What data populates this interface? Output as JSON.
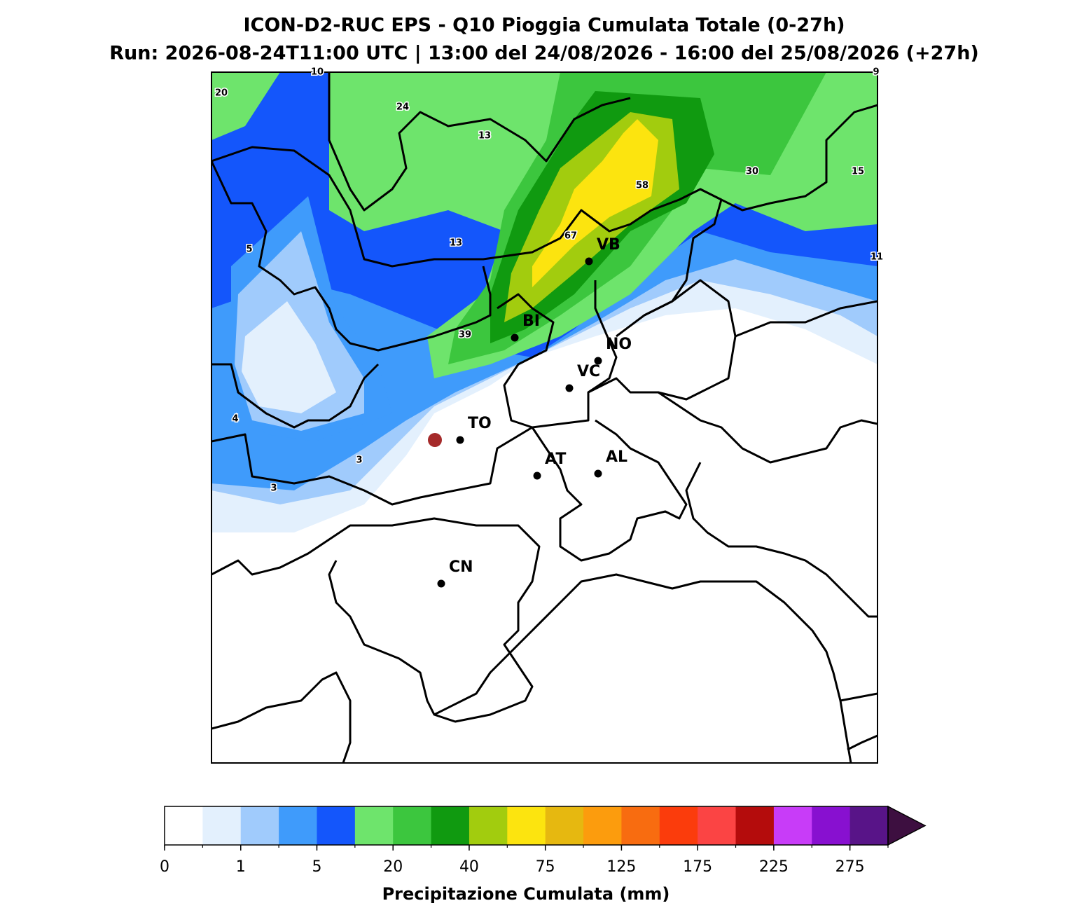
{
  "header": {
    "title": "ICON-D2-RUC EPS - Q10 Pioggia Cumulata Totale (0-27h)",
    "subtitle": "Run: 2026-08-24T11:00 UTC | 13:00 del 24/08/2026 - 16:00 del 25/08/2026 (+27h)"
  },
  "map": {
    "cities": [
      {
        "label": "VB"
      },
      {
        "label": "BI"
      },
      {
        "label": "NO"
      },
      {
        "label": "VC"
      },
      {
        "label": "TO"
      },
      {
        "label": "AT"
      },
      {
        "label": "AL"
      },
      {
        "label": "CN"
      }
    ],
    "contour_labels": [
      10,
      20,
      24,
      13,
      58,
      30,
      15,
      5,
      13,
      67,
      11,
      9,
      39,
      4,
      3,
      3
    ]
  },
  "colorbar": {
    "colors": [
      "#ffffff",
      "#e3f0fd",
      "#a0cbfc",
      "#3f9bfb",
      "#1456fb",
      "#6ee46c",
      "#3cc63e",
      "#109a10",
      "#a2cc0e",
      "#fce40f",
      "#e6b810",
      "#fc9c0d",
      "#f86c10",
      "#fb3c0c",
      "#fb4444",
      "#b40c0c",
      "#c83cf8",
      "#8810d0",
      "#581488"
    ],
    "extend_color": "#3d0f40",
    "ticks": [
      0,
      1,
      5,
      20,
      40,
      75,
      125,
      175,
      225,
      275
    ],
    "label": "Precipitazione Cumulata (mm)"
  }
}
